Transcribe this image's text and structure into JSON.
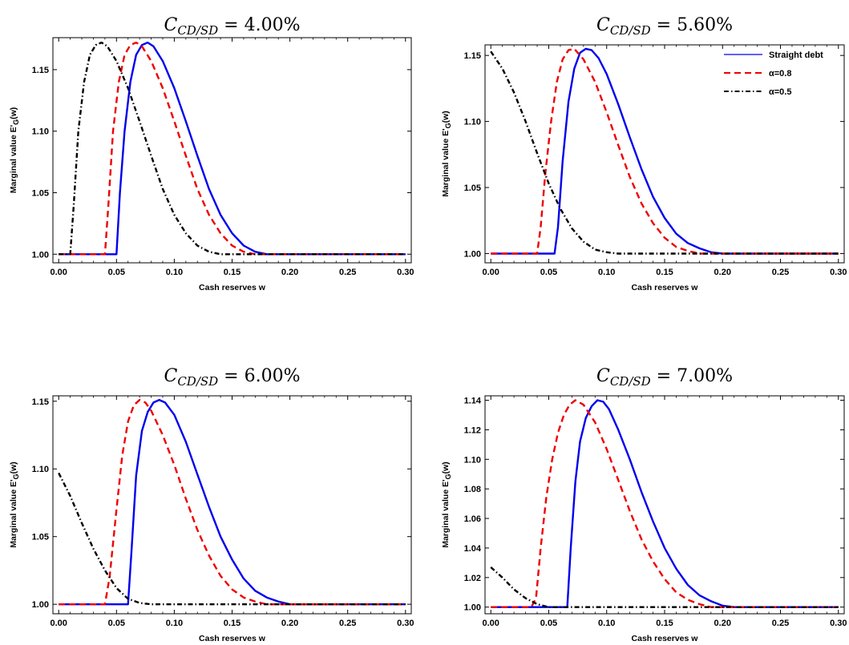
{
  "chart_data": [
    {
      "type": "line",
      "title": "C_{CD/SD} = 4.00%",
      "title_parts": {
        "base": "C",
        "sub": "CD/SD",
        "rest": " = 4.00%"
      },
      "xlabel": "Cash reserves w",
      "ylabel": "Marginal value E'",
      "ylabel_sub": "G",
      "ylabel_suffix": "(w)",
      "xlim": [
        -0.005,
        0.305
      ],
      "ylim": [
        0.993,
        1.176
      ],
      "xticks": [
        "0.00",
        "0.05",
        "0.10",
        "0.15",
        "0.20",
        "0.25",
        "0.30"
      ],
      "yticks": [
        "1.00",
        "1.05",
        "1.10",
        "1.15"
      ],
      "legend": false,
      "series": [
        {
          "name": "Straight debt",
          "color": "#0000ee",
          "dash": "solid",
          "x": [
            0.0,
            0.05,
            0.053,
            0.057,
            0.062,
            0.067,
            0.072,
            0.077,
            0.082,
            0.09,
            0.1,
            0.11,
            0.12,
            0.13,
            0.14,
            0.15,
            0.16,
            0.17,
            0.18,
            0.19,
            0.3
          ],
          "y": [
            1.0,
            1.0,
            1.05,
            1.1,
            1.14,
            1.162,
            1.17,
            1.172,
            1.169,
            1.157,
            1.135,
            1.108,
            1.08,
            1.053,
            1.032,
            1.017,
            1.007,
            1.002,
            1.0,
            1.0,
            1.0
          ]
        },
        {
          "name": "α=0.8",
          "color": "#ee0000",
          "dash": "8,5",
          "x": [
            0.0,
            0.04,
            0.043,
            0.047,
            0.052,
            0.057,
            0.062,
            0.067,
            0.072,
            0.08,
            0.09,
            0.1,
            0.11,
            0.12,
            0.13,
            0.14,
            0.15,
            0.16,
            0.17,
            0.18,
            0.3
          ],
          "y": [
            1.0,
            1.0,
            1.04,
            1.1,
            1.14,
            1.162,
            1.17,
            1.172,
            1.169,
            1.157,
            1.135,
            1.108,
            1.08,
            1.053,
            1.032,
            1.017,
            1.007,
            1.002,
            1.0,
            1.0,
            1.0
          ]
        },
        {
          "name": "α=0.5",
          "color": "#000000",
          "dash": "6,3,1.5,3",
          "x": [
            0.0,
            0.01,
            0.013,
            0.017,
            0.022,
            0.027,
            0.032,
            0.037,
            0.042,
            0.05,
            0.06,
            0.07,
            0.08,
            0.09,
            0.1,
            0.11,
            0.12,
            0.13,
            0.14,
            0.15,
            0.3
          ],
          "y": [
            1.0,
            1.0,
            1.04,
            1.1,
            1.14,
            1.162,
            1.17,
            1.172,
            1.169,
            1.157,
            1.135,
            1.108,
            1.08,
            1.053,
            1.032,
            1.017,
            1.007,
            1.002,
            1.0,
            1.0,
            1.0
          ]
        }
      ]
    },
    {
      "type": "line",
      "title": "C_{CD/SD} = 5.60%",
      "title_parts": {
        "base": "C",
        "sub": "CD/SD",
        "rest": " = 5.60%"
      },
      "xlabel": "Cash reserves w",
      "ylabel": "Marginal value E'",
      "ylabel_sub": "G",
      "ylabel_suffix": "(w)",
      "xlim": [
        -0.005,
        0.305
      ],
      "ylim": [
        0.993,
        1.158
      ],
      "xticks": [
        "0.00",
        "0.05",
        "0.10",
        "0.15",
        "0.20",
        "0.25",
        "0.30"
      ],
      "yticks": [
        "1.00",
        "1.05",
        "1.10",
        "1.15"
      ],
      "legend": true,
      "legend_position": "top-right",
      "series": [
        {
          "name": "Straight debt",
          "color": "#0000ee",
          "dash": "solid",
          "x": [
            0.0,
            0.055,
            0.058,
            0.062,
            0.067,
            0.072,
            0.077,
            0.082,
            0.087,
            0.093,
            0.1,
            0.11,
            0.12,
            0.13,
            0.14,
            0.15,
            0.16,
            0.17,
            0.18,
            0.19,
            0.2,
            0.21,
            0.3
          ],
          "y": [
            1.0,
            1.0,
            1.02,
            1.07,
            1.115,
            1.14,
            1.152,
            1.155,
            1.154,
            1.148,
            1.136,
            1.113,
            1.088,
            1.064,
            1.043,
            1.027,
            1.015,
            1.008,
            1.004,
            1.001,
            1.0,
            1.0,
            1.0
          ]
        },
        {
          "name": "α=0.8",
          "color": "#ee0000",
          "dash": "8,5",
          "x": [
            0.0,
            0.04,
            0.043,
            0.047,
            0.052,
            0.057,
            0.062,
            0.067,
            0.072,
            0.08,
            0.09,
            0.1,
            0.11,
            0.12,
            0.13,
            0.14,
            0.15,
            0.16,
            0.17,
            0.18,
            0.19,
            0.3
          ],
          "y": [
            1.0,
            1.0,
            1.02,
            1.06,
            1.1,
            1.13,
            1.147,
            1.154,
            1.155,
            1.147,
            1.13,
            1.107,
            1.082,
            1.058,
            1.038,
            1.023,
            1.012,
            1.005,
            1.002,
            1.0,
            1.0,
            1.0
          ]
        },
        {
          "name": "α=0.5",
          "color": "#000000",
          "dash": "6,3,1.5,3",
          "x": [
            0.0,
            0.01,
            0.02,
            0.03,
            0.04,
            0.05,
            0.06,
            0.07,
            0.08,
            0.09,
            0.1,
            0.11,
            0.12,
            0.3
          ],
          "y": [
            1.153,
            1.14,
            1.122,
            1.1,
            1.076,
            1.053,
            1.034,
            1.019,
            1.009,
            1.003,
            1.001,
            1.0,
            1.0,
            1.0
          ]
        }
      ]
    },
    {
      "type": "line",
      "title": "C_{CD/SD} = 6.00%",
      "title_parts": {
        "base": "C",
        "sub": "CD/SD",
        "rest": " = 6.00%"
      },
      "xlabel": "Cash reserves w",
      "ylabel": "Marginal value E'",
      "ylabel_sub": "G",
      "ylabel_suffix": "(w)",
      "xlim": [
        -0.005,
        0.305
      ],
      "ylim": [
        0.993,
        1.154
      ],
      "xticks": [
        "0.00",
        "0.05",
        "0.10",
        "0.15",
        "0.20",
        "0.25",
        "0.30"
      ],
      "yticks": [
        "1.00",
        "1.05",
        "1.10",
        "1.15"
      ],
      "legend": false,
      "series": [
        {
          "name": "Straight debt",
          "color": "#0000ee",
          "dash": "solid",
          "x": [
            0.0,
            0.06,
            0.063,
            0.067,
            0.072,
            0.077,
            0.082,
            0.087,
            0.092,
            0.1,
            0.11,
            0.12,
            0.13,
            0.14,
            0.15,
            0.16,
            0.17,
            0.18,
            0.19,
            0.2,
            0.21,
            0.22,
            0.3
          ],
          "y": [
            1.0,
            1.0,
            1.04,
            1.095,
            1.128,
            1.142,
            1.149,
            1.151,
            1.149,
            1.14,
            1.12,
            1.096,
            1.072,
            1.05,
            1.033,
            1.019,
            1.01,
            1.005,
            1.002,
            1.0,
            1.0,
            1.0,
            1.0
          ]
        },
        {
          "name": "α=0.8",
          "color": "#ee0000",
          "dash": "8,5",
          "x": [
            0.0,
            0.04,
            0.044,
            0.05,
            0.055,
            0.06,
            0.065,
            0.07,
            0.075,
            0.08,
            0.09,
            0.1,
            0.11,
            0.12,
            0.13,
            0.14,
            0.15,
            0.16,
            0.17,
            0.18,
            0.19,
            0.2,
            0.3
          ],
          "y": [
            1.0,
            1.0,
            1.02,
            1.07,
            1.11,
            1.135,
            1.147,
            1.151,
            1.149,
            1.143,
            1.125,
            1.103,
            1.078,
            1.055,
            1.036,
            1.021,
            1.011,
            1.005,
            1.002,
            1.0,
            1.0,
            1.0,
            1.0
          ]
        },
        {
          "name": "α=0.5",
          "color": "#000000",
          "dash": "6,3,1.5,3",
          "x": [
            0.0,
            0.01,
            0.02,
            0.03,
            0.04,
            0.05,
            0.06,
            0.07,
            0.08,
            0.09,
            0.3
          ],
          "y": [
            1.097,
            1.08,
            1.06,
            1.041,
            1.025,
            1.012,
            1.004,
            1.001,
            1.0,
            1.0,
            1.0
          ]
        }
      ]
    },
    {
      "type": "line",
      "title": "C_{CD/SD} = 7.00%",
      "title_parts": {
        "base": "C",
        "sub": "CD/SD",
        "rest": " = 7.00%"
      },
      "xlabel": "Cash reserves w",
      "ylabel": "Marginal value E'",
      "ylabel_sub": "G",
      "ylabel_suffix": "(w)",
      "xlim": [
        -0.005,
        0.305
      ],
      "ylim": [
        0.9955,
        1.143
      ],
      "xticks": [
        "0.00",
        "0.05",
        "0.10",
        "0.15",
        "0.20",
        "0.25",
        "0.30"
      ],
      "yticks": [
        "1.00",
        "1.02",
        "1.04",
        "1.06",
        "1.08",
        "1.10",
        "1.12",
        "1.14"
      ],
      "legend": false,
      "series": [
        {
          "name": "Straight debt",
          "color": "#0000ee",
          "dash": "solid",
          "x": [
            0.0,
            0.066,
            0.069,
            0.073,
            0.077,
            0.082,
            0.087,
            0.092,
            0.097,
            0.102,
            0.11,
            0.12,
            0.13,
            0.14,
            0.15,
            0.16,
            0.17,
            0.18,
            0.19,
            0.2,
            0.21,
            0.22,
            0.23,
            0.3
          ],
          "y": [
            1.0,
            1.0,
            1.04,
            1.085,
            1.112,
            1.128,
            1.136,
            1.14,
            1.139,
            1.134,
            1.12,
            1.1,
            1.078,
            1.058,
            1.04,
            1.026,
            1.015,
            1.008,
            1.004,
            1.001,
            1.0,
            1.0,
            1.0,
            1.0
          ]
        },
        {
          "name": "α=0.8",
          "color": "#ee0000",
          "dash": "8,5",
          "x": [
            0.0,
            0.035,
            0.039,
            0.043,
            0.048,
            0.053,
            0.058,
            0.063,
            0.068,
            0.073,
            0.08,
            0.09,
            0.1,
            0.11,
            0.12,
            0.13,
            0.14,
            0.15,
            0.16,
            0.17,
            0.18,
            0.19,
            0.2,
            0.3
          ],
          "y": [
            1.0,
            1.0,
            1.006,
            1.04,
            1.075,
            1.1,
            1.118,
            1.13,
            1.137,
            1.14,
            1.137,
            1.125,
            1.107,
            1.086,
            1.065,
            1.046,
            1.031,
            1.019,
            1.01,
            1.005,
            1.002,
            1.0,
            1.0,
            1.0
          ]
        },
        {
          "name": "α=0.5",
          "color": "#000000",
          "dash": "6,3,1.5,3",
          "x": [
            0.0,
            0.01,
            0.02,
            0.03,
            0.04,
            0.05,
            0.06,
            0.3
          ],
          "y": [
            1.027,
            1.02,
            1.012,
            1.006,
            1.002,
            1.0,
            1.0,
            1.0
          ]
        }
      ]
    }
  ]
}
